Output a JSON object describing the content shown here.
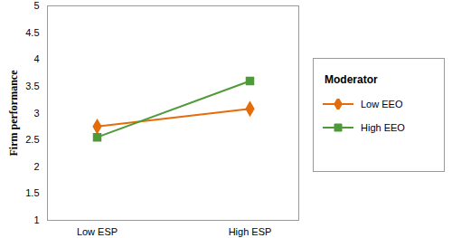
{
  "chart_data": {
    "type": "line",
    "y_label": "Firm performance",
    "categories": [
      "Low ESP",
      "High ESP"
    ],
    "series": [
      {
        "name": "Low EEO",
        "color": "#e46c0a",
        "marker": "diamond",
        "values": [
          2.75,
          3.08
        ]
      },
      {
        "name": "High EEO",
        "color": "#4e9a38",
        "marker": "square",
        "values": [
          2.55,
          3.6
        ]
      }
    ],
    "ylim": [
      1,
      5
    ],
    "yticks": [
      1,
      1.5,
      2,
      2.5,
      3,
      3.5,
      4,
      4.5,
      5
    ],
    "grid": false,
    "legend": "right",
    "legend_title": "Moderator"
  }
}
